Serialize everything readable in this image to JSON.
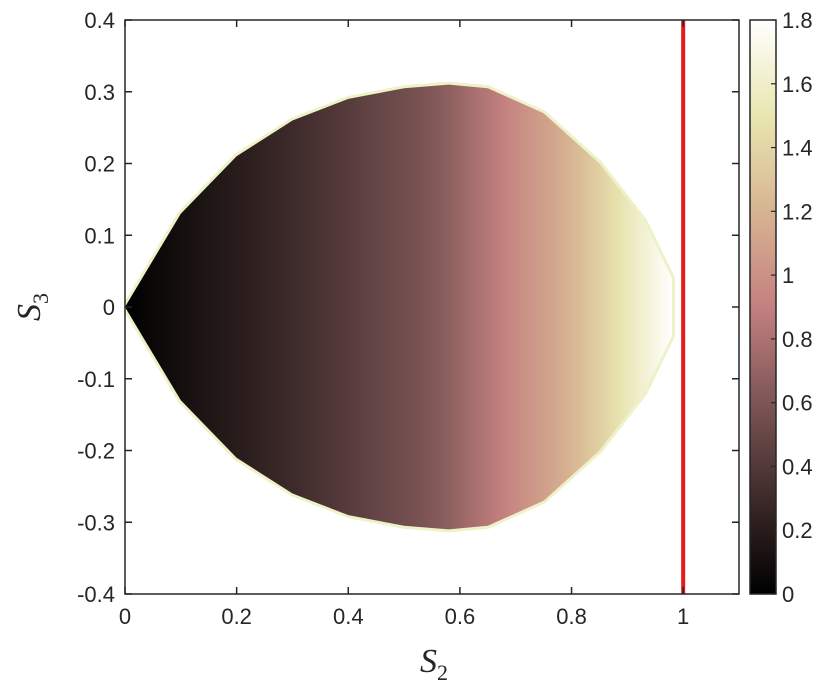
{
  "chart_data": {
    "type": "heatmap",
    "title": "",
    "xlabel": "S",
    "xlabel_sub": "2",
    "ylabel": "S",
    "ylabel_sub": "3",
    "xlim": [
      0,
      1.1
    ],
    "ylim": [
      -0.4,
      0.4
    ],
    "x_ticks": [
      0,
      0.2,
      0.4,
      0.6,
      0.8,
      1
    ],
    "x_tick_labels": [
      "0",
      "0.2",
      "0.4",
      "0.6",
      "0.8",
      "1"
    ],
    "y_ticks": [
      -0.4,
      -0.3,
      -0.2,
      -0.1,
      0,
      0.1,
      0.2,
      0.3,
      0.4
    ],
    "y_tick_labels": [
      "-0.4",
      "-0.3",
      "-0.2",
      "-0.1",
      "0",
      "0.1",
      "0.2",
      "0.3",
      "0.4"
    ],
    "colorbar": {
      "range": [
        0,
        1.8
      ],
      "ticks": [
        0,
        0.2,
        0.4,
        0.6,
        0.8,
        1,
        1.2,
        1.4,
        1.6,
        1.8
      ],
      "tick_labels": [
        "0",
        "0.2",
        "0.4",
        "0.6",
        "0.8",
        "1",
        "1.2",
        "1.4",
        "1.6",
        "1.8"
      ],
      "colormap": [
        "#000000",
        "#3d2a2a",
        "#7d5555",
        "#c48080",
        "#d7b491",
        "#e8e6b0",
        "#ffffff"
      ]
    },
    "region": {
      "upper_boundary": [
        [
          0,
          0
        ],
        [
          0.1,
          0.13
        ],
        [
          0.2,
          0.21
        ],
        [
          0.3,
          0.26
        ],
        [
          0.4,
          0.29
        ],
        [
          0.5,
          0.305
        ],
        [
          0.58,
          0.31
        ],
        [
          0.65,
          0.305
        ],
        [
          0.75,
          0.27
        ],
        [
          0.85,
          0.2
        ],
        [
          0.93,
          0.12
        ],
        [
          0.98,
          0.04
        ],
        [
          0.98,
          0
        ]
      ],
      "value_at_x": [
        [
          0,
          0
        ],
        [
          0.3,
          0.3
        ],
        [
          0.56,
          0.62
        ],
        [
          0.8,
          1.2
        ],
        [
          0.98,
          1.8
        ]
      ]
    },
    "vertical_line": {
      "x": 1,
      "color": "#e41a1c"
    },
    "grid": false
  }
}
